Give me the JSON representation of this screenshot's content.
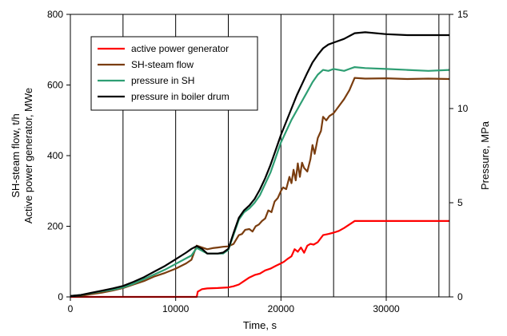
{
  "chart_data": {
    "type": "line",
    "xlabel": "Time, s",
    "ylabel_left": [
      "SH-steam flow, t/h",
      "Active power generator, MWe"
    ],
    "ylabel_right": "Pressure, MPa",
    "xlim": [
      0,
      36000
    ],
    "ylim_left": [
      0,
      800
    ],
    "ylim_right": [
      0,
      15
    ],
    "x_ticks": [
      0,
      10000,
      20000,
      30000
    ],
    "x_ticks_labels": [
      "0",
      "10000",
      "20000",
      "30000"
    ],
    "x_gridlines": [
      5000,
      10000,
      15000,
      20000,
      25000,
      30000,
      35000
    ],
    "y_left_ticks": [
      0,
      200,
      400,
      600,
      800
    ],
    "y_right_ticks": [
      0,
      5,
      10,
      15
    ],
    "legend_position": "top-left",
    "series": [
      {
        "name": "active power generator",
        "color": "#ff0000",
        "axis": "left",
        "points": [
          [
            0,
            0
          ],
          [
            12000,
            0
          ],
          [
            12100,
            15
          ],
          [
            12500,
            22
          ],
          [
            13000,
            24
          ],
          [
            14000,
            25
          ],
          [
            15000,
            27
          ],
          [
            15500,
            30
          ],
          [
            16000,
            35
          ],
          [
            16500,
            45
          ],
          [
            17000,
            55
          ],
          [
            17500,
            62
          ],
          [
            18000,
            66
          ],
          [
            18500,
            75
          ],
          [
            19000,
            80
          ],
          [
            19500,
            88
          ],
          [
            20000,
            95
          ],
          [
            20300,
            100
          ],
          [
            20600,
            107
          ],
          [
            21000,
            115
          ],
          [
            21300,
            135
          ],
          [
            21600,
            128
          ],
          [
            21900,
            140
          ],
          [
            22200,
            125
          ],
          [
            22500,
            145
          ],
          [
            22800,
            150
          ],
          [
            23100,
            148
          ],
          [
            23500,
            155
          ],
          [
            24000,
            175
          ],
          [
            24500,
            178
          ],
          [
            25000,
            182
          ],
          [
            25500,
            187
          ],
          [
            26000,
            195
          ],
          [
            26500,
            205
          ],
          [
            27000,
            215
          ],
          [
            36000,
            215
          ]
        ]
      },
      {
        "name": "SH-steam flow",
        "color": "#7a3d0f",
        "axis": "left",
        "points": [
          [
            0,
            2
          ],
          [
            1000,
            3
          ],
          [
            2000,
            8
          ],
          [
            3000,
            12
          ],
          [
            4000,
            18
          ],
          [
            5000,
            25
          ],
          [
            6000,
            35
          ],
          [
            7000,
            45
          ],
          [
            8000,
            58
          ],
          [
            9000,
            68
          ],
          [
            10000,
            80
          ],
          [
            11000,
            95
          ],
          [
            11500,
            105
          ],
          [
            12000,
            145
          ],
          [
            12500,
            140
          ],
          [
            13000,
            135
          ],
          [
            13500,
            138
          ],
          [
            14000,
            140
          ],
          [
            14500,
            142
          ],
          [
            15000,
            143
          ],
          [
            15500,
            150
          ],
          [
            16000,
            175
          ],
          [
            16300,
            178
          ],
          [
            16600,
            190
          ],
          [
            17000,
            192
          ],
          [
            17300,
            185
          ],
          [
            17600,
            200
          ],
          [
            17900,
            205
          ],
          [
            18200,
            215
          ],
          [
            18500,
            222
          ],
          [
            18800,
            245
          ],
          [
            19100,
            240
          ],
          [
            19400,
            270
          ],
          [
            19700,
            280
          ],
          [
            20000,
            300
          ],
          [
            20200,
            310
          ],
          [
            20500,
            305
          ],
          [
            20800,
            340
          ],
          [
            21000,
            322
          ],
          [
            21200,
            360
          ],
          [
            21400,
            330
          ],
          [
            21600,
            378
          ],
          [
            21800,
            340
          ],
          [
            22000,
            380
          ],
          [
            22200,
            365
          ],
          [
            22500,
            355
          ],
          [
            22800,
            390
          ],
          [
            23000,
            430
          ],
          [
            23200,
            405
          ],
          [
            23500,
            450
          ],
          [
            23800,
            470
          ],
          [
            24000,
            510
          ],
          [
            24300,
            500
          ],
          [
            24600,
            512
          ],
          [
            25000,
            520
          ],
          [
            25500,
            540
          ],
          [
            26000,
            560
          ],
          [
            26500,
            585
          ],
          [
            27000,
            620
          ],
          [
            28000,
            618
          ],
          [
            30000,
            619
          ],
          [
            32000,
            617
          ],
          [
            34000,
            618
          ],
          [
            36000,
            617
          ]
        ]
      },
      {
        "name": "pressure in SH",
        "color": "#2e9e73",
        "axis": "right",
        "points": [
          [
            0,
            0.05
          ],
          [
            1000,
            0.1
          ],
          [
            2000,
            0.2
          ],
          [
            3000,
            0.3
          ],
          [
            4000,
            0.38
          ],
          [
            5000,
            0.5
          ],
          [
            6000,
            0.7
          ],
          [
            7000,
            0.95
          ],
          [
            8000,
            1.2
          ],
          [
            9000,
            1.45
          ],
          [
            10000,
            1.75
          ],
          [
            11000,
            2.05
          ],
          [
            11500,
            2.2
          ],
          [
            12000,
            2.6
          ],
          [
            12500,
            2.45
          ],
          [
            13000,
            2.3
          ],
          [
            14000,
            2.3
          ],
          [
            14500,
            2.3
          ],
          [
            15000,
            2.5
          ],
          [
            15500,
            3.3
          ],
          [
            16000,
            4.1
          ],
          [
            16500,
            4.5
          ],
          [
            17000,
            4.7
          ],
          [
            17500,
            5.0
          ],
          [
            18000,
            5.4
          ],
          [
            18500,
            6.0
          ],
          [
            19000,
            6.6
          ],
          [
            19500,
            7.4
          ],
          [
            20000,
            8.2
          ],
          [
            20500,
            8.8
          ],
          [
            21000,
            9.4
          ],
          [
            21500,
            9.9
          ],
          [
            22000,
            10.4
          ],
          [
            22500,
            10.9
          ],
          [
            23000,
            11.4
          ],
          [
            23500,
            11.8
          ],
          [
            24000,
            12.05
          ],
          [
            24500,
            12.0
          ],
          [
            25000,
            12.1
          ],
          [
            25500,
            12.05
          ],
          [
            26000,
            12.0
          ],
          [
            26500,
            12.1
          ],
          [
            27000,
            12.2
          ],
          [
            28000,
            12.15
          ],
          [
            30000,
            12.1
          ],
          [
            32000,
            12.05
          ],
          [
            34000,
            12.0
          ],
          [
            36000,
            12.05
          ]
        ]
      },
      {
        "name": "pressure in boiler drum",
        "color": "#000000",
        "axis": "right",
        "points": [
          [
            0,
            0.05
          ],
          [
            1000,
            0.1
          ],
          [
            2000,
            0.22
          ],
          [
            3000,
            0.33
          ],
          [
            4000,
            0.45
          ],
          [
            5000,
            0.58
          ],
          [
            6000,
            0.8
          ],
          [
            7000,
            1.05
          ],
          [
            8000,
            1.35
          ],
          [
            9000,
            1.65
          ],
          [
            10000,
            2.0
          ],
          [
            11000,
            2.35
          ],
          [
            11500,
            2.55
          ],
          [
            12000,
            2.7
          ],
          [
            12500,
            2.55
          ],
          [
            13000,
            2.3
          ],
          [
            14000,
            2.3
          ],
          [
            14500,
            2.35
          ],
          [
            15000,
            2.55
          ],
          [
            15500,
            3.4
          ],
          [
            16000,
            4.2
          ],
          [
            16500,
            4.6
          ],
          [
            17000,
            4.85
          ],
          [
            17500,
            5.2
          ],
          [
            18000,
            5.7
          ],
          [
            18500,
            6.3
          ],
          [
            19000,
            7.0
          ],
          [
            19500,
            7.8
          ],
          [
            20000,
            8.6
          ],
          [
            20500,
            9.3
          ],
          [
            21000,
            10.0
          ],
          [
            21500,
            10.7
          ],
          [
            22000,
            11.3
          ],
          [
            22500,
            11.9
          ],
          [
            23000,
            12.45
          ],
          [
            23500,
            12.85
          ],
          [
            24000,
            13.2
          ],
          [
            24500,
            13.4
          ],
          [
            25000,
            13.5
          ],
          [
            26000,
            13.7
          ],
          [
            27000,
            14.0
          ],
          [
            28000,
            14.05
          ],
          [
            30000,
            13.95
          ],
          [
            32000,
            13.9
          ],
          [
            34000,
            13.9
          ],
          [
            36000,
            13.9
          ]
        ]
      }
    ]
  }
}
